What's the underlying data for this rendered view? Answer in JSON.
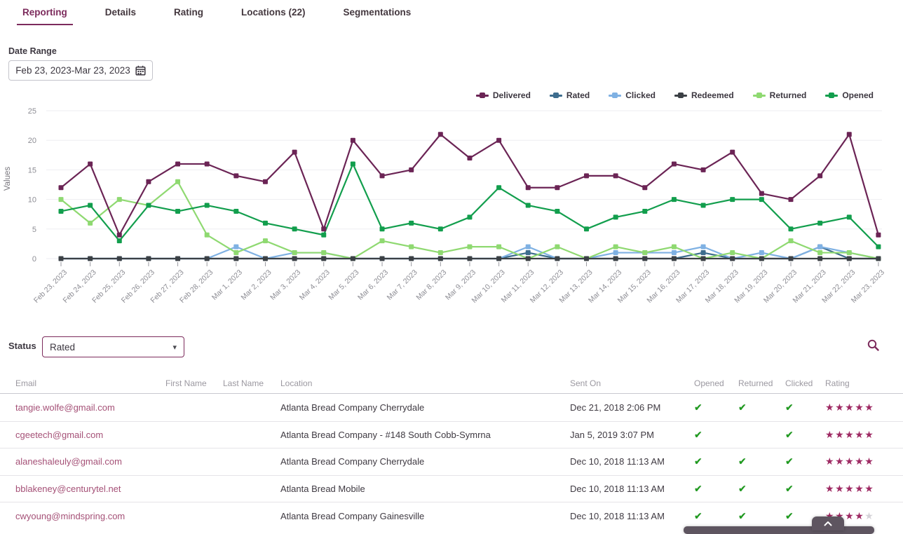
{
  "tabs": {
    "items": [
      {
        "label": "Reporting",
        "active": true
      },
      {
        "label": "Details",
        "active": false
      },
      {
        "label": "Rating",
        "active": false
      },
      {
        "label": "Locations (22)",
        "active": false
      },
      {
        "label": "Segmentations",
        "active": false
      }
    ]
  },
  "filters": {
    "date_range_label": "Date Range",
    "date_range_value": "Feb 23, 2023-Mar 23, 2023",
    "status_label": "Status",
    "status_value": "Rated"
  },
  "icons": {
    "calendar": "calendar-icon",
    "search": "search-icon",
    "dropdown_caret": "chevron-down-icon",
    "scroll_up": "chevron-up-icon",
    "caret_glyph": "▾"
  },
  "colors": {
    "accent_purple": "#7c2b5c",
    "email_link": "#a55177",
    "check_green": "#1d9b1d",
    "star_filled": "#9e2a63",
    "star_empty": "#d5d3d8",
    "grid_line": "#ededf1",
    "axis_text": "#8d8d94"
  },
  "chart_data": {
    "type": "line",
    "title": "",
    "xlabel": "",
    "ylabel": "Values",
    "ylim": [
      0,
      25
    ],
    "yticks": [
      0,
      5,
      10,
      15,
      20,
      25
    ],
    "grid": "horizontal",
    "legend_position": "top-right",
    "categories": [
      "Feb 23, 2023",
      "Feb 24, 2023",
      "Feb 25, 2023",
      "Feb 26, 2023",
      "Feb 27, 2023",
      "Feb 28, 2023",
      "Mar 1, 2023",
      "Mar 2, 2023",
      "Mar 3, 2023",
      "Mar 4, 2023",
      "Mar 5, 2023",
      "Mar 6, 2023",
      "Mar 7, 2023",
      "Mar 8, 2023",
      "Mar 9, 2023",
      "Mar 10, 2023",
      "Mar 11, 2023",
      "Mar 12, 2023",
      "Mar 13, 2023",
      "Mar 14, 2023",
      "Mar 15, 2023",
      "Mar 16, 2023",
      "Mar 17, 2023",
      "Mar 18, 2023",
      "Mar 19, 2023",
      "Mar 20, 2023",
      "Mar 21, 2023",
      "Mar 22, 2023",
      "Mar 23, 2023"
    ],
    "series": [
      {
        "name": "Rated",
        "color": "#3d6d8e",
        "values": [
          0,
          0,
          0,
          0,
          0,
          0,
          0,
          0,
          0,
          0,
          0,
          0,
          0,
          0,
          0,
          0,
          1,
          0,
          0,
          0,
          0,
          0,
          1,
          0,
          0,
          0,
          2,
          0,
          0
        ]
      },
      {
        "name": "Clicked",
        "color": "#7fb1e3",
        "values": [
          0,
          0,
          0,
          0,
          0,
          0,
          2,
          0,
          1,
          1,
          0,
          0,
          0,
          0,
          0,
          0,
          2,
          0,
          0,
          1,
          1,
          1,
          2,
          0,
          1,
          0,
          2,
          1,
          0
        ]
      },
      {
        "name": "Returned",
        "color": "#8fd971",
        "values": [
          10,
          6,
          10,
          9,
          13,
          4,
          1,
          3,
          1,
          1,
          0,
          3,
          2,
          1,
          2,
          2,
          0,
          2,
          0,
          2,
          1,
          2,
          0,
          1,
          0,
          3,
          1,
          1,
          0
        ]
      },
      {
        "name": "Redeemed",
        "color": "#3b4045",
        "values": [
          0,
          0,
          0,
          0,
          0,
          0,
          0,
          0,
          0,
          0,
          0,
          0,
          0,
          0,
          0,
          0,
          0,
          0,
          0,
          0,
          0,
          0,
          0,
          0,
          0,
          0,
          0,
          0,
          0
        ]
      },
      {
        "name": "Opened",
        "color": "#129e4d",
        "values": [
          8,
          9,
          3,
          9,
          8,
          9,
          8,
          6,
          5,
          4,
          16,
          5,
          6,
          5,
          7,
          12,
          9,
          8,
          5,
          7,
          8,
          10,
          9,
          10,
          10,
          5,
          6,
          7,
          2
        ]
      },
      {
        "name": "Delivered",
        "color": "#6b2455",
        "values": [
          12,
          16,
          4,
          13,
          16,
          16,
          14,
          13,
          18,
          5,
          20,
          14,
          15,
          21,
          17,
          20,
          12,
          12,
          14,
          14,
          12,
          16,
          15,
          18,
          11,
          10,
          14,
          21,
          4
        ]
      }
    ],
    "legend_order": [
      "Delivered",
      "Rated",
      "Clicked",
      "Redeemed",
      "Returned",
      "Opened"
    ]
  },
  "table": {
    "columns": [
      "Email",
      "First Name",
      "Last Name",
      "Location",
      "Sent On",
      "Opened",
      "Returned",
      "Clicked",
      "Rating"
    ],
    "max_stars": 5,
    "rows": [
      {
        "email": "tangie.wolfe@gmail.com",
        "first_name": "",
        "last_name": "",
        "location": "Atlanta Bread Company Cherrydale",
        "sent_on": "Dec 21, 2018 2:06 PM",
        "opened": true,
        "returned": true,
        "clicked": true,
        "rating": 5
      },
      {
        "email": "cgeetech@gmail.com",
        "first_name": "",
        "last_name": "",
        "location": "Atlanta Bread Company - #148 South Cobb-Symrna",
        "sent_on": "Jan 5, 2019 3:07 PM",
        "opened": true,
        "returned": false,
        "clicked": true,
        "rating": 5
      },
      {
        "email": "alaneshaleuly@gmail.com",
        "first_name": "",
        "last_name": "",
        "location": "Atlanta Bread Company Cherrydale",
        "sent_on": "Dec 10, 2018 11:13 AM",
        "opened": true,
        "returned": true,
        "clicked": true,
        "rating": 5
      },
      {
        "email": "bblakeney@centurytel.net",
        "first_name": "",
        "last_name": "",
        "location": "Atlanta Bread Mobile",
        "sent_on": "Dec 10, 2018 11:13 AM",
        "opened": true,
        "returned": true,
        "clicked": true,
        "rating": 5
      },
      {
        "email": "cwyoung@mindspring.com",
        "first_name": "",
        "last_name": "",
        "location": "Atlanta Bread Company Gainesville",
        "sent_on": "Dec 10, 2018 11:13 AM",
        "opened": true,
        "returned": true,
        "clicked": true,
        "rating": 4
      }
    ]
  }
}
